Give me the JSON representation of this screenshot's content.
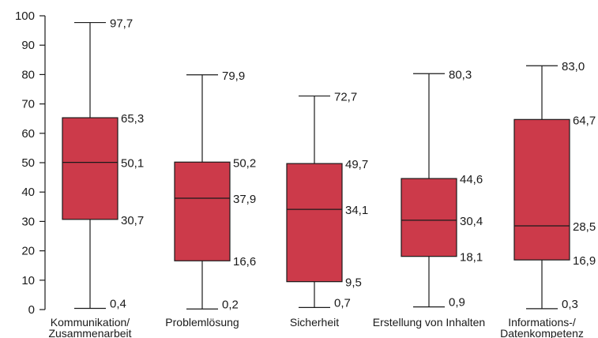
{
  "chart_data": {
    "type": "boxplot",
    "ylim": [
      0,
      100
    ],
    "yticks": [
      0,
      10,
      20,
      30,
      40,
      50,
      60,
      70,
      80,
      90,
      100
    ],
    "box_color": "#cc3a4a",
    "line_color": "#1a1a1a",
    "categories": [
      {
        "label_lines": [
          "Kommunikation/",
          "Zusammenarbeit"
        ],
        "min": 0.4,
        "q1": 30.7,
        "median": 50.1,
        "q3": 65.3,
        "max": 97.7,
        "labels": {
          "min": "0,4",
          "q1": "30,7",
          "median": "50,1",
          "q3": "65,3",
          "max": "97,7"
        }
      },
      {
        "label_lines": [
          "Problemlösung"
        ],
        "min": 0.2,
        "q1": 16.6,
        "median": 37.9,
        "q3": 50.2,
        "max": 79.9,
        "labels": {
          "min": "0,2",
          "q1": "16,6",
          "median": "37,9",
          "q3": "50,2",
          "max": "79,9"
        }
      },
      {
        "label_lines": [
          "Sicherheit"
        ],
        "min": 0.7,
        "q1": 9.5,
        "median": 34.1,
        "q3": 49.7,
        "max": 72.7,
        "labels": {
          "min": "0,7",
          "q1": "9,5",
          "median": "34,1",
          "q3": "49,7",
          "max": "72,7"
        }
      },
      {
        "label_lines": [
          "Erstellung von Inhalten"
        ],
        "min": 0.9,
        "q1": 18.1,
        "median": 30.4,
        "q3": 44.6,
        "max": 80.3,
        "labels": {
          "min": "0,9",
          "q1": "18,1",
          "median": "30,4",
          "q3": "44,6",
          "max": "80,3"
        }
      },
      {
        "label_lines": [
          "Informations-/",
          "Datenkompetenz"
        ],
        "min": 0.3,
        "q1": 16.9,
        "median": 28.5,
        "q3": 64.7,
        "max": 83.0,
        "labels": {
          "min": "0,3",
          "q1": "16,9",
          "median": "28,5",
          "q3": "64,7",
          "max": "83,0"
        }
      }
    ]
  }
}
